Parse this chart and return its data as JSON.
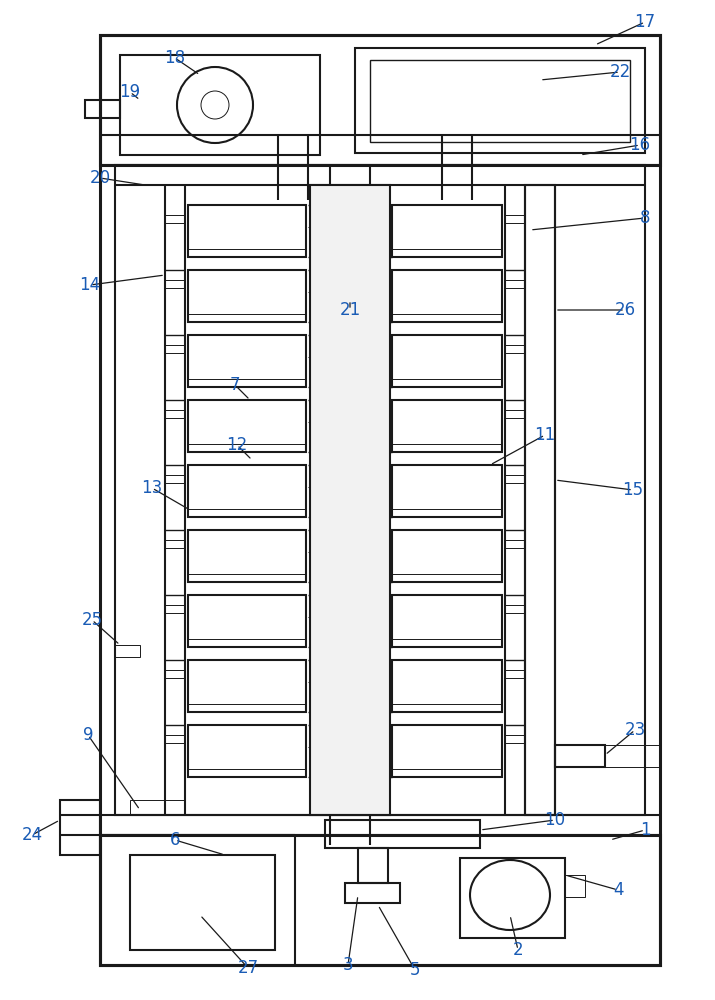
{
  "fig_width": 7.15,
  "fig_height": 10.0,
  "dpi": 100,
  "line_color": "#1a1a1a",
  "label_color": "#1a5cb5",
  "bg_color": "#ffffff",
  "lw_outer": 2.2,
  "lw_mid": 1.5,
  "lw_inner": 1.0,
  "lw_thin": 0.7
}
